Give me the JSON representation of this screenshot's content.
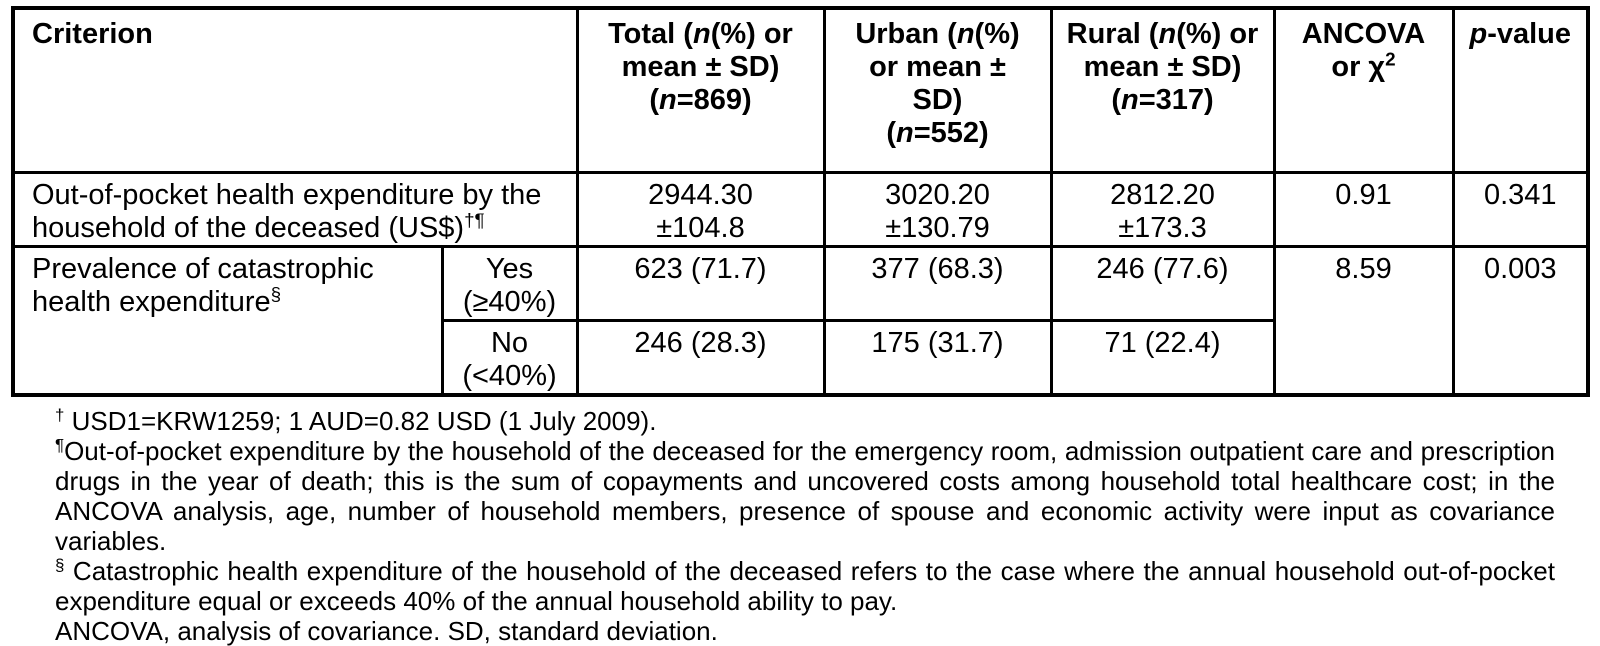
{
  "colors": {
    "background": "#ffffff",
    "text": "#000000",
    "border": "#000000"
  },
  "table": {
    "header": {
      "criterion": "Criterion",
      "total": [
        {
          "t": "Total ("
        },
        {
          "t": "n",
          "i": true
        },
        {
          "t": "(%) or"
        },
        {
          "br": true
        },
        {
          "t": "mean ± SD)"
        },
        {
          "br": true
        },
        {
          "t": "("
        },
        {
          "t": "n",
          "i": true
        },
        {
          "t": "=869)"
        }
      ],
      "urban": [
        {
          "t": "Urban ("
        },
        {
          "t": "n",
          "i": true
        },
        {
          "t": "(%)"
        },
        {
          "br": true
        },
        {
          "t": "or mean ±"
        },
        {
          "br": true
        },
        {
          "t": "SD)"
        },
        {
          "br": true
        },
        {
          "t": "("
        },
        {
          "t": "n",
          "i": true
        },
        {
          "t": "=552)"
        }
      ],
      "rural": [
        {
          "t": "Rural ("
        },
        {
          "t": "n",
          "i": true
        },
        {
          "t": "(%) or"
        },
        {
          "br": true
        },
        {
          "t": "mean ± SD)"
        },
        {
          "br": true
        },
        {
          "t": "("
        },
        {
          "t": "n",
          "i": true
        },
        {
          "t": "=317)"
        }
      ],
      "ancova": [
        {
          "t": "ANCOVA"
        },
        {
          "br": true
        },
        {
          "t": "or χ"
        },
        {
          "t": "2",
          "sup": true
        }
      ],
      "pvalue": [
        {
          "t": "p",
          "i": true
        },
        {
          "t": "-value"
        }
      ]
    },
    "row_oop": {
      "label": [
        {
          "t": "Out-of-pocket health expenditure by the"
        },
        {
          "br": true
        },
        {
          "t": "household of the deceased (US$)"
        },
        {
          "t": "†¶",
          "sup": true
        }
      ],
      "total": [
        {
          "t": "2944.30"
        },
        {
          "br": true
        },
        {
          "t": "±104.8"
        }
      ],
      "urban": [
        {
          "t": "3020.20"
        },
        {
          "br": true
        },
        {
          "t": "±130.79"
        }
      ],
      "rural": [
        {
          "t": "2812.20"
        },
        {
          "br": true
        },
        {
          "t": "±173.3"
        }
      ],
      "ancova": "0.91",
      "pvalue": "0.341"
    },
    "row_che": {
      "label": [
        {
          "t": "Prevalence of catastrophic"
        },
        {
          "br": true
        },
        {
          "t": "health expenditure"
        },
        {
          "t": "§",
          "sup": true
        }
      ],
      "yes": {
        "label": [
          {
            "t": "Yes"
          },
          {
            "br": true
          },
          {
            "t": "(≥40%)"
          }
        ],
        "total": "623 (71.7)",
        "urban": "377 (68.3)",
        "rural": "246 (77.6)"
      },
      "no": {
        "label": [
          {
            "t": "No"
          },
          {
            "br": true
          },
          {
            "t": "(<40%)"
          }
        ],
        "total": "246 (28.3)",
        "urban": "175 (31.7)",
        "rural": "71 (22.4)"
      },
      "ancova": "8.59",
      "pvalue": "0.003"
    }
  },
  "footnotes": {
    "dagger": [
      {
        "t": "†",
        "sup": true
      },
      {
        "t": " USD1=KRW1259; 1 AUD=0.82 USD (1 July 2009)."
      }
    ],
    "pilcrow": [
      {
        "t": "¶",
        "sup": true
      },
      {
        "t": "Out-of-pocket expenditure by the household of the deceased for the emergency room, admission outpatient care and prescription drugs in the year of death; this is the sum of copayments and uncovered costs among household total healthcare cost; in the ANCOVA analysis, age, number of household members, presence of spouse and economic activity were input as covariance variables."
      }
    ],
    "section": [
      {
        "t": "§",
        "sup": true
      },
      {
        "t": " Catastrophic health expenditure of the household of the deceased refers to the case where the annual household out-of-pocket expenditure equal or exceeds 40% of the annual household ability to pay."
      }
    ],
    "abbreviations": "ANCOVA, analysis of covariance. SD, standard deviation."
  }
}
